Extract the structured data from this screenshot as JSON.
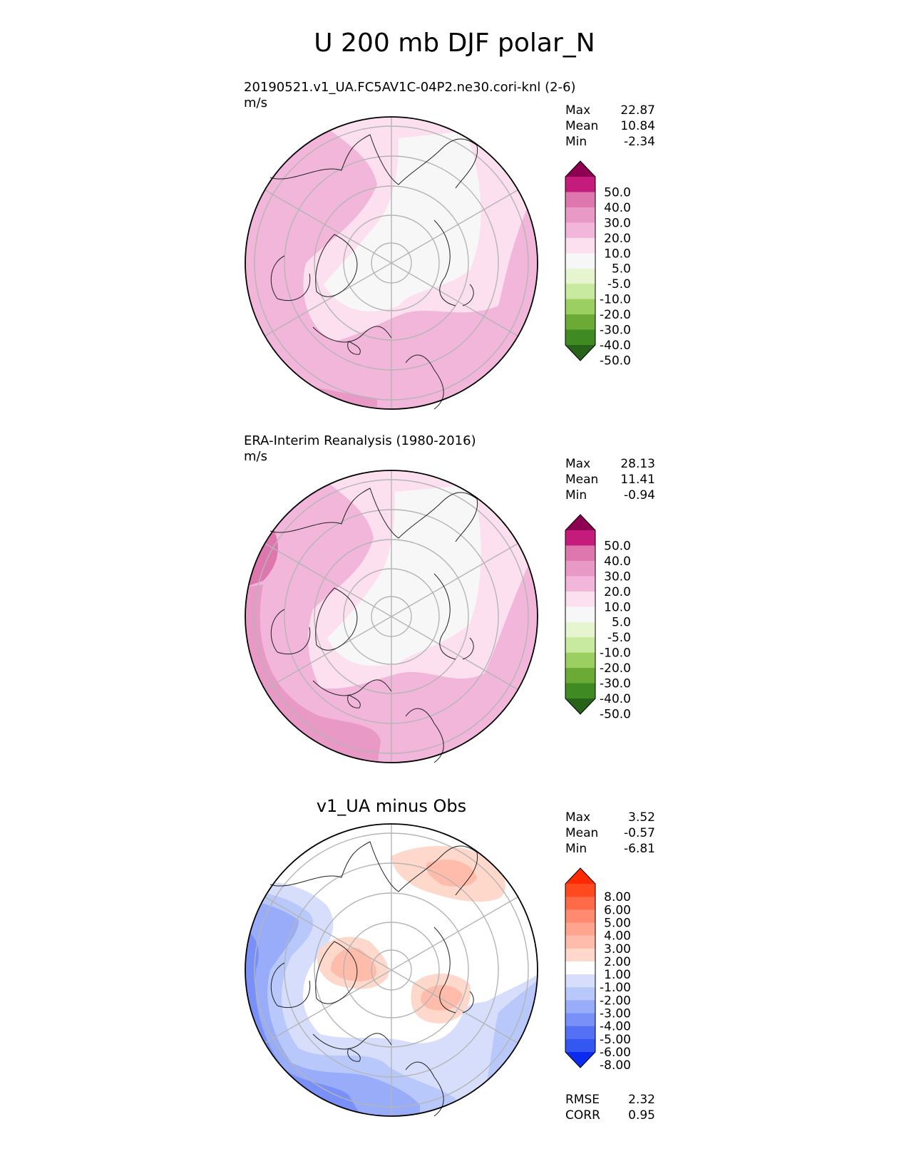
{
  "title": "U 200 mb DJF polar_N",
  "panels": [
    {
      "kind": "test",
      "title": "20190521.v1_UA.FC5AV1C-04P2.ne30.cori-knl (2-6)",
      "units": "m/s",
      "stats": [
        {
          "label": "Max",
          "value": "22.87"
        },
        {
          "label": "Mean",
          "value": "10.84"
        },
        {
          "label": "Min",
          "value": "-2.34"
        }
      ]
    },
    {
      "kind": "ref",
      "title": "ERA-Interim Reanalysis (1980-2016)",
      "units": "m/s",
      "stats": [
        {
          "label": "Max",
          "value": "28.13"
        },
        {
          "label": "Mean",
          "value": "11.41"
        },
        {
          "label": "Min",
          "value": "-0.94"
        }
      ]
    },
    {
      "kind": "diff",
      "title": "v1_UA minus Obs",
      "units": "",
      "stats": [
        {
          "label": "Max",
          "value": "3.52"
        },
        {
          "label": "Mean",
          "value": "-0.57"
        },
        {
          "label": "Min",
          "value": "-6.81"
        }
      ],
      "metrics": [
        {
          "label": "RMSE",
          "value": "2.32"
        },
        {
          "label": "CORR",
          "value": "0.95"
        }
      ]
    }
  ],
  "colorbars": {
    "main": {
      "ticks": [
        "50.0",
        "40.0",
        "30.0",
        "20.0",
        "10.0",
        "5.0",
        "-5.0",
        "-10.0",
        "-20.0",
        "-30.0",
        "-40.0",
        "-50.0"
      ],
      "colors": [
        "#8e0152",
        "#c51b7d",
        "#de77ae",
        "#e899c6",
        "#f1b6da",
        "#fde0ef",
        "#f7f7f7",
        "#e6f5d0",
        "#c7e9a0",
        "#9ccf62",
        "#6aaa35",
        "#3f8a22",
        "#276419"
      ]
    },
    "diff": {
      "ticks": [
        "8.00",
        "6.00",
        "5.00",
        "4.00",
        "3.00",
        "2.00",
        "1.00",
        "-1.00",
        "-2.00",
        "-3.00",
        "-4.00",
        "-5.00",
        "-6.00",
        "-8.00"
      ],
      "colors": [
        "#ff2a00",
        "#ff4a20",
        "#ff6a48",
        "#ff8a70",
        "#ffa48e",
        "#ffbcaa",
        "#ffd8cc",
        "#ffffff",
        "#d6defc",
        "#b8c8fb",
        "#98acf9",
        "#7890f7",
        "#5470f4",
        "#3358f2",
        "#0b2cef"
      ]
    }
  },
  "chart_data": [
    {
      "type": "heatmap",
      "title": "20190521.v1_UA.FC5AV1C-04P2.ne30.cori-knl (2-6)",
      "projection": "polar stereographic north",
      "units": "m/s",
      "variable": "U 200 mb DJF",
      "levels": [
        -50,
        -40,
        -30,
        -20,
        -10,
        -5,
        5,
        10,
        20,
        30,
        40,
        50
      ],
      "max": 22.87,
      "mean": 10.84,
      "min": -2.34
    },
    {
      "type": "heatmap",
      "title": "ERA-Interim Reanalysis (1980-2016)",
      "projection": "polar stereographic north",
      "units": "m/s",
      "variable": "U 200 mb DJF",
      "levels": [
        -50,
        -40,
        -30,
        -20,
        -10,
        -5,
        5,
        10,
        20,
        30,
        40,
        50
      ],
      "max": 28.13,
      "mean": 11.41,
      "min": -0.94
    },
    {
      "type": "heatmap",
      "title": "v1_UA minus Obs",
      "projection": "polar stereographic north",
      "variable": "U 200 mb DJF",
      "levels": [
        -8,
        -6,
        -5,
        -4,
        -3,
        -2,
        -1,
        1,
        2,
        3,
        4,
        5,
        6,
        8
      ],
      "max": 3.52,
      "mean": -0.57,
      "min": -6.81,
      "rmse": 2.32,
      "corr": 0.95
    }
  ]
}
